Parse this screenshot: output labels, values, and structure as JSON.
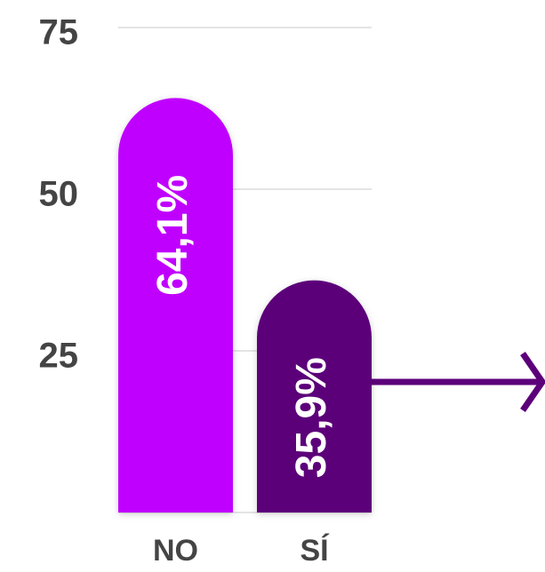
{
  "chart_data": {
    "type": "bar",
    "categories": [
      "NO",
      "SÍ"
    ],
    "values": [
      64.1,
      35.9
    ],
    "value_labels": [
      "64,1%",
      "35,9%"
    ],
    "colors": [
      "#c000ff",
      "#5c007a"
    ],
    "ylim": [
      0,
      75
    ],
    "yticks": [
      25,
      50,
      75
    ],
    "grid": true
  }
}
